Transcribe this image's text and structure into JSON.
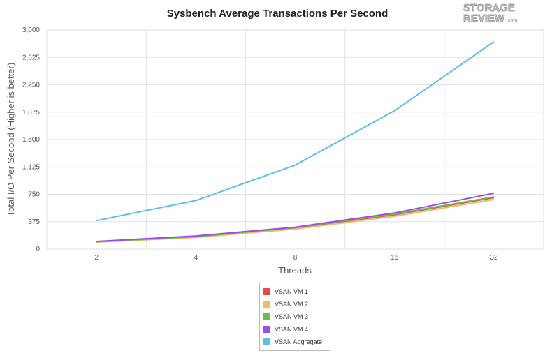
{
  "logo": {
    "line1": "STORAGE",
    "line2": "REVIEW",
    "suffix": ".com"
  },
  "chart_data": {
    "type": "line",
    "title": "Sysbench Average Transactions Per Second",
    "xlabel": "Threads",
    "ylabel": "Total I/O Per Second (Higher is better)",
    "categories": [
      "2",
      "4",
      "8",
      "16",
      "32"
    ],
    "ylim": [
      0,
      3000
    ],
    "yticks": [
      "0",
      "375",
      "750",
      "1,125",
      "1,500",
      "1,875",
      "2,250",
      "2,625",
      "3,000"
    ],
    "grid": true,
    "legend_position": "bottom",
    "series": [
      {
        "name": "VSAN VM 1",
        "color": "#e8474c",
        "values": [
          100,
          165,
          290,
          470,
          705
        ]
      },
      {
        "name": "VSAN VM 2",
        "color": "#f0b96b",
        "values": [
          95,
          160,
          275,
          450,
          680
        ]
      },
      {
        "name": "VSAN VM 3",
        "color": "#6cc04a",
        "values": [
          100,
          170,
          295,
          480,
          715
        ]
      },
      {
        "name": "VSAN VM 4",
        "color": "#9b4fe6",
        "values": [
          105,
          180,
          300,
          495,
          765
        ]
      },
      {
        "name": "VSAN Aggregate",
        "color": "#5bbfe9",
        "values": [
          390,
          665,
          1150,
          1895,
          2840
        ]
      }
    ]
  }
}
